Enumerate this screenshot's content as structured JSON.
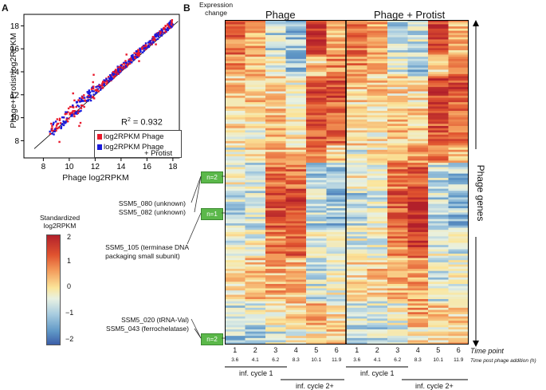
{
  "panel_a": {
    "letter": "A",
    "x_label": "Phage log2RPKM",
    "y_label": "Phage+Protist log2RPKM",
    "r2_prefix": "R",
    "r2_sup": "2",
    "r2_value": " = 0.932",
    "legend": [
      {
        "label": "log2RPKM Phage",
        "color": "#e8192c"
      },
      {
        "label": "log2RPKM Phage",
        "label2": "+ Protist",
        "color": "#1a1adb"
      }
    ]
  },
  "color_scale": {
    "title_line1": "Standardized",
    "title_line2": "log2RPKM",
    "ticks": [
      "2",
      "1",
      "0",
      "−1",
      "−2"
    ]
  },
  "panel_b": {
    "letter": "B",
    "expr_line1": "Expression",
    "expr_line2": "change",
    "group_phage": "Phage",
    "group_phage_protist": "Phage + Protist",
    "row_axis_label": "Phage genes",
    "time_point_label": "Time point",
    "time_post_label": "Time post phage addition (h)",
    "columns": [
      {
        "tp": "1",
        "h": "3.6"
      },
      {
        "tp": "2",
        "h": "4.1"
      },
      {
        "tp": "3",
        "h": "6.2"
      },
      {
        "tp": "4",
        "h": "8.3"
      },
      {
        "tp": "5",
        "h": "10.1"
      },
      {
        "tp": "6",
        "h": "11.9"
      }
    ],
    "cycle1": "inf. cycle 1",
    "cycle2": "inf. cycle 2+",
    "clusters": [
      {
        "badge": "n=2",
        "genes": [
          "SSM5_080 (unknown)",
          "SSM5_082 (unknown)"
        ]
      },
      {
        "badge": "n=1",
        "genes": [
          "SSM5_105 (terminase DNA",
          "packaging small subunit)"
        ]
      },
      {
        "badge": "n=2",
        "genes": [
          "SSM5_020 (tRNA-Val)",
          "SSM5_043 (ferrochelatase)"
        ]
      }
    ]
  },
  "chart_data": [
    {
      "type": "scatter",
      "title": "",
      "xlabel": "Phage log2RPKM",
      "ylabel": "Phage+Protist log2RPKM",
      "xlim": [
        6.5,
        18.5
      ],
      "ylim": [
        6.5,
        19
      ],
      "xticks": [
        8,
        10,
        12,
        14,
        16,
        18
      ],
      "yticks": [
        8,
        10,
        12,
        14,
        16,
        18
      ],
      "annotation": "R2 = 0.932",
      "reference_line": "y = x",
      "series": [
        {
          "name": "log2RPKM Phage",
          "color": "#e8192c"
        },
        {
          "name": "log2RPKM Phage + Protist",
          "color": "#1a1adb"
        }
      ]
    },
    {
      "type": "heatmap",
      "title": "Expression change",
      "groups": [
        "Phage",
        "Phage + Protist"
      ],
      "columns": [
        "1",
        "2",
        "3",
        "4",
        "5",
        "6",
        "1",
        "2",
        "3",
        "4",
        "5",
        "6"
      ],
      "rows": "Phage genes",
      "value_range": [
        -2,
        2
      ],
      "colorbar_label": "Standardized log2RPKM"
    }
  ]
}
